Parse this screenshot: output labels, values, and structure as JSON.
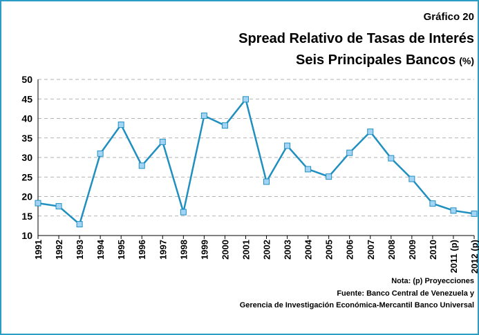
{
  "chart_data": {
    "type": "line",
    "chart_label": "Gráfico 20",
    "title": "Spread Relativo de Tasas de Interés",
    "subtitle": "Seis Principales Bancos",
    "unit": "(%)",
    "categories": [
      "1991",
      "1992",
      "1993",
      "1994",
      "1995",
      "1996",
      "1997",
      "1998",
      "1999",
      "2000",
      "2001",
      "2002",
      "2003",
      "2004",
      "2005",
      "2006",
      "2007",
      "2008",
      "2009",
      "2010",
      "2011 (p)",
      "2012 (p)"
    ],
    "series": [
      {
        "name": "Spread",
        "color": "#1f8fc0",
        "marker_color": "#a3d4f5",
        "values": [
          18.3,
          17.5,
          12.9,
          31,
          38.4,
          27.9,
          34,
          16,
          40.7,
          38.2,
          44.9,
          23.8,
          33,
          27,
          25.1,
          31.2,
          36.6,
          29.8,
          24.5,
          18.2,
          16.4,
          15.6
        ]
      }
    ],
    "ylim": [
      10,
      50
    ],
    "yticks": [
      10,
      15,
      20,
      25,
      30,
      35,
      40,
      45,
      50
    ],
    "grid": true,
    "notes": [
      "Nota: (p) Proyecciones",
      "Fuente: Banco Central de Venezuela y",
      "Gerencia de Investigación Económica-Mercantil Banco Universal"
    ]
  }
}
